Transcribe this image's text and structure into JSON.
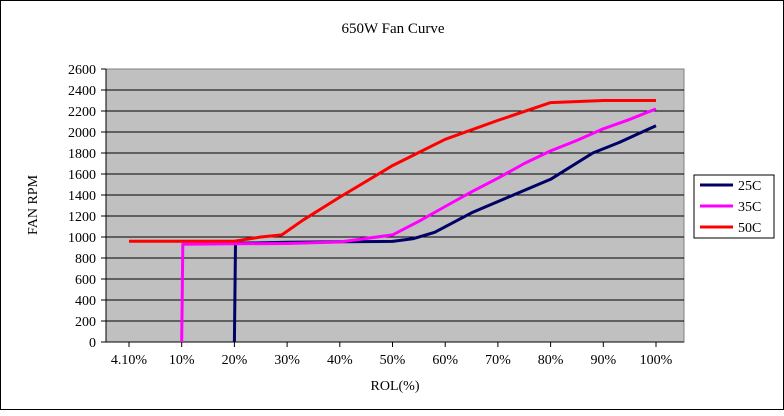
{
  "chart_data": {
    "type": "line",
    "title": "650W Fan Curve",
    "xlabel": "ROL(%)",
    "ylabel": "FAN RPM",
    "categories": [
      "4.10%",
      "10%",
      "20%",
      "30%",
      "40%",
      "50%",
      "60%",
      "70%",
      "80%",
      "90%",
      "100%"
    ],
    "ylim": [
      0,
      2600
    ],
    "yticks": [
      "0",
      "200",
      "400",
      "600",
      "800",
      "1000",
      "1200",
      "1400",
      "1600",
      "1800",
      "2000",
      "2200",
      "2400",
      "2600"
    ],
    "grid": true,
    "legend": "right",
    "plot_background": "#c0c0c0",
    "series": [
      {
        "name": "25C",
        "color": "#000066",
        "points": [
          [
            2,
            0
          ],
          [
            2.02,
            940
          ],
          [
            3,
            950
          ],
          [
            4,
            955
          ],
          [
            5,
            958
          ],
          [
            5.4,
            985
          ],
          [
            5.8,
            1045
          ],
          [
            6.5,
            1230
          ],
          [
            7.2,
            1380
          ],
          [
            8,
            1550
          ],
          [
            8.8,
            1800
          ],
          [
            9.3,
            1900
          ],
          [
            10,
            2060
          ]
        ]
      },
      {
        "name": "35C",
        "color": "#ff00ff",
        "points": [
          [
            1,
            0
          ],
          [
            1.02,
            930
          ],
          [
            2,
            935
          ],
          [
            3,
            938
          ],
          [
            4,
            952
          ],
          [
            5,
            1020
          ],
          [
            5.5,
            1150
          ],
          [
            6,
            1290
          ],
          [
            6.5,
            1430
          ],
          [
            7,
            1560
          ],
          [
            7.5,
            1700
          ],
          [
            8,
            1820
          ],
          [
            8.5,
            1920
          ],
          [
            9,
            2030
          ],
          [
            9.5,
            2120
          ],
          [
            10,
            2220
          ]
        ]
      },
      {
        "name": "50C",
        "color": "#ff0000",
        "points": [
          [
            0,
            960
          ],
          [
            2,
            960
          ],
          [
            2.5,
            1000
          ],
          [
            2.9,
            1020
          ],
          [
            3.3,
            1160
          ],
          [
            4,
            1380
          ],
          [
            5,
            1680
          ],
          [
            6,
            1930
          ],
          [
            7,
            2110
          ],
          [
            8,
            2280
          ],
          [
            9,
            2300
          ],
          [
            10,
            2300
          ]
        ]
      }
    ]
  }
}
